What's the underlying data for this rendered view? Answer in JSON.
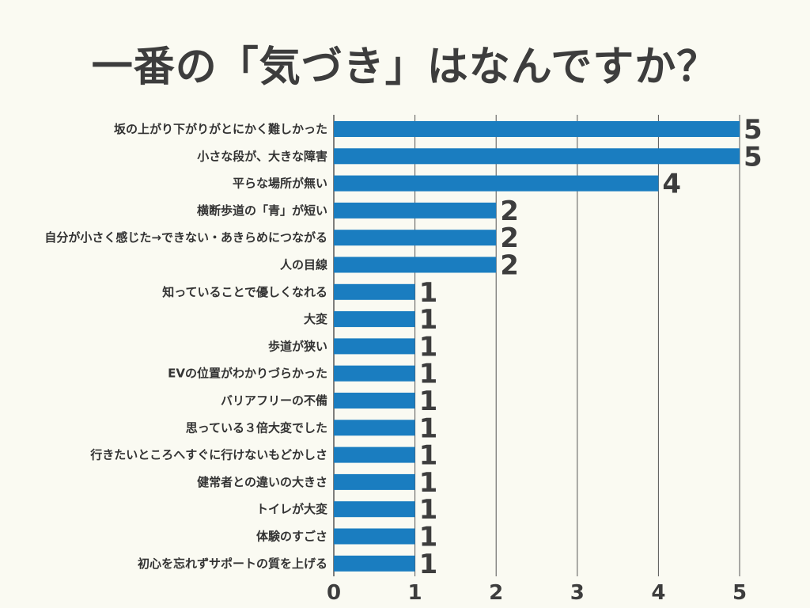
{
  "chart_data": {
    "type": "bar",
    "orientation": "horizontal",
    "title": "一番の「気づき」はなんですか？",
    "categories": [
      "坂の上がり下がりがとにかく難しかった",
      "小さな段が、大きな障害",
      "平らな場所が無い",
      "横断歩道の「青」が短い",
      "自分が小さく感じた→できない・あきらめにつながる",
      "人の目線",
      "知っていることで優しくなれる",
      "大変",
      "歩道が狭い",
      "EVの位置がわかりづらかった",
      "バリアフリーの不備",
      "思っている３倍大変でした",
      "行きたいところへすぐに行けないもどかしさ",
      "健常者との違いの大きさ",
      "トイレが大変",
      "体験のすごさ",
      "初心を忘れずサポートの質を上げる"
    ],
    "values": [
      5,
      5,
      4,
      2,
      2,
      2,
      1,
      1,
      1,
      1,
      1,
      1,
      1,
      1,
      1,
      1,
      1
    ],
    "xticks": [
      "0",
      "1",
      "2",
      "3",
      "4",
      "5"
    ],
    "xlim": [
      0,
      5
    ],
    "grid": true,
    "bar_color": "#1a7dc0",
    "grid_color": "#555555"
  }
}
